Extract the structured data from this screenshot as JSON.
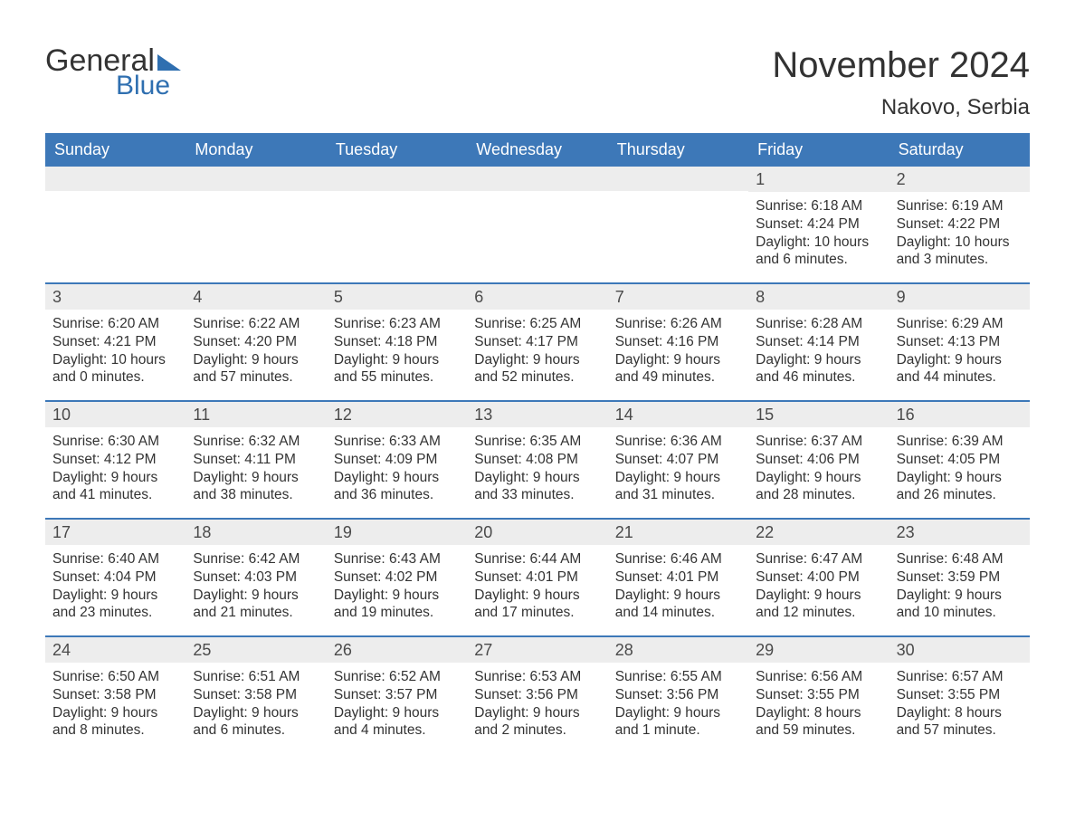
{
  "brand": {
    "part1": "General",
    "part2": "Blue"
  },
  "title": "November 2024",
  "location": "Nakovo, Serbia",
  "colors": {
    "header_bg": "#3d78b8",
    "header_text": "#ffffff",
    "row_separator": "#3d78b8",
    "daynum_bg": "#ededed",
    "text": "#333333",
    "logo_accent": "#2f6fb0"
  },
  "daynames": [
    "Sunday",
    "Monday",
    "Tuesday",
    "Wednesday",
    "Thursday",
    "Friday",
    "Saturday"
  ],
  "weeks": [
    [
      {
        "empty": true
      },
      {
        "empty": true
      },
      {
        "empty": true
      },
      {
        "empty": true
      },
      {
        "empty": true
      },
      {
        "day": "1",
        "sunrise": "Sunrise: 6:18 AM",
        "sunset": "Sunset: 4:24 PM",
        "daylight": "Daylight: 10 hours and 6 minutes."
      },
      {
        "day": "2",
        "sunrise": "Sunrise: 6:19 AM",
        "sunset": "Sunset: 4:22 PM",
        "daylight": "Daylight: 10 hours and 3 minutes."
      }
    ],
    [
      {
        "day": "3",
        "sunrise": "Sunrise: 6:20 AM",
        "sunset": "Sunset: 4:21 PM",
        "daylight": "Daylight: 10 hours and 0 minutes."
      },
      {
        "day": "4",
        "sunrise": "Sunrise: 6:22 AM",
        "sunset": "Sunset: 4:20 PM",
        "daylight": "Daylight: 9 hours and 57 minutes."
      },
      {
        "day": "5",
        "sunrise": "Sunrise: 6:23 AM",
        "sunset": "Sunset: 4:18 PM",
        "daylight": "Daylight: 9 hours and 55 minutes."
      },
      {
        "day": "6",
        "sunrise": "Sunrise: 6:25 AM",
        "sunset": "Sunset: 4:17 PM",
        "daylight": "Daylight: 9 hours and 52 minutes."
      },
      {
        "day": "7",
        "sunrise": "Sunrise: 6:26 AM",
        "sunset": "Sunset: 4:16 PM",
        "daylight": "Daylight: 9 hours and 49 minutes."
      },
      {
        "day": "8",
        "sunrise": "Sunrise: 6:28 AM",
        "sunset": "Sunset: 4:14 PM",
        "daylight": "Daylight: 9 hours and 46 minutes."
      },
      {
        "day": "9",
        "sunrise": "Sunrise: 6:29 AM",
        "sunset": "Sunset: 4:13 PM",
        "daylight": "Daylight: 9 hours and 44 minutes."
      }
    ],
    [
      {
        "day": "10",
        "sunrise": "Sunrise: 6:30 AM",
        "sunset": "Sunset: 4:12 PM",
        "daylight": "Daylight: 9 hours and 41 minutes."
      },
      {
        "day": "11",
        "sunrise": "Sunrise: 6:32 AM",
        "sunset": "Sunset: 4:11 PM",
        "daylight": "Daylight: 9 hours and 38 minutes."
      },
      {
        "day": "12",
        "sunrise": "Sunrise: 6:33 AM",
        "sunset": "Sunset: 4:09 PM",
        "daylight": "Daylight: 9 hours and 36 minutes."
      },
      {
        "day": "13",
        "sunrise": "Sunrise: 6:35 AM",
        "sunset": "Sunset: 4:08 PM",
        "daylight": "Daylight: 9 hours and 33 minutes."
      },
      {
        "day": "14",
        "sunrise": "Sunrise: 6:36 AM",
        "sunset": "Sunset: 4:07 PM",
        "daylight": "Daylight: 9 hours and 31 minutes."
      },
      {
        "day": "15",
        "sunrise": "Sunrise: 6:37 AM",
        "sunset": "Sunset: 4:06 PM",
        "daylight": "Daylight: 9 hours and 28 minutes."
      },
      {
        "day": "16",
        "sunrise": "Sunrise: 6:39 AM",
        "sunset": "Sunset: 4:05 PM",
        "daylight": "Daylight: 9 hours and 26 minutes."
      }
    ],
    [
      {
        "day": "17",
        "sunrise": "Sunrise: 6:40 AM",
        "sunset": "Sunset: 4:04 PM",
        "daylight": "Daylight: 9 hours and 23 minutes."
      },
      {
        "day": "18",
        "sunrise": "Sunrise: 6:42 AM",
        "sunset": "Sunset: 4:03 PM",
        "daylight": "Daylight: 9 hours and 21 minutes."
      },
      {
        "day": "19",
        "sunrise": "Sunrise: 6:43 AM",
        "sunset": "Sunset: 4:02 PM",
        "daylight": "Daylight: 9 hours and 19 minutes."
      },
      {
        "day": "20",
        "sunrise": "Sunrise: 6:44 AM",
        "sunset": "Sunset: 4:01 PM",
        "daylight": "Daylight: 9 hours and 17 minutes."
      },
      {
        "day": "21",
        "sunrise": "Sunrise: 6:46 AM",
        "sunset": "Sunset: 4:01 PM",
        "daylight": "Daylight: 9 hours and 14 minutes."
      },
      {
        "day": "22",
        "sunrise": "Sunrise: 6:47 AM",
        "sunset": "Sunset: 4:00 PM",
        "daylight": "Daylight: 9 hours and 12 minutes."
      },
      {
        "day": "23",
        "sunrise": "Sunrise: 6:48 AM",
        "sunset": "Sunset: 3:59 PM",
        "daylight": "Daylight: 9 hours and 10 minutes."
      }
    ],
    [
      {
        "day": "24",
        "sunrise": "Sunrise: 6:50 AM",
        "sunset": "Sunset: 3:58 PM",
        "daylight": "Daylight: 9 hours and 8 minutes."
      },
      {
        "day": "25",
        "sunrise": "Sunrise: 6:51 AM",
        "sunset": "Sunset: 3:58 PM",
        "daylight": "Daylight: 9 hours and 6 minutes."
      },
      {
        "day": "26",
        "sunrise": "Sunrise: 6:52 AM",
        "sunset": "Sunset: 3:57 PM",
        "daylight": "Daylight: 9 hours and 4 minutes."
      },
      {
        "day": "27",
        "sunrise": "Sunrise: 6:53 AM",
        "sunset": "Sunset: 3:56 PM",
        "daylight": "Daylight: 9 hours and 2 minutes."
      },
      {
        "day": "28",
        "sunrise": "Sunrise: 6:55 AM",
        "sunset": "Sunset: 3:56 PM",
        "daylight": "Daylight: 9 hours and 1 minute."
      },
      {
        "day": "29",
        "sunrise": "Sunrise: 6:56 AM",
        "sunset": "Sunset: 3:55 PM",
        "daylight": "Daylight: 8 hours and 59 minutes."
      },
      {
        "day": "30",
        "sunrise": "Sunrise: 6:57 AM",
        "sunset": "Sunset: 3:55 PM",
        "daylight": "Daylight: 8 hours and 57 minutes."
      }
    ]
  ]
}
